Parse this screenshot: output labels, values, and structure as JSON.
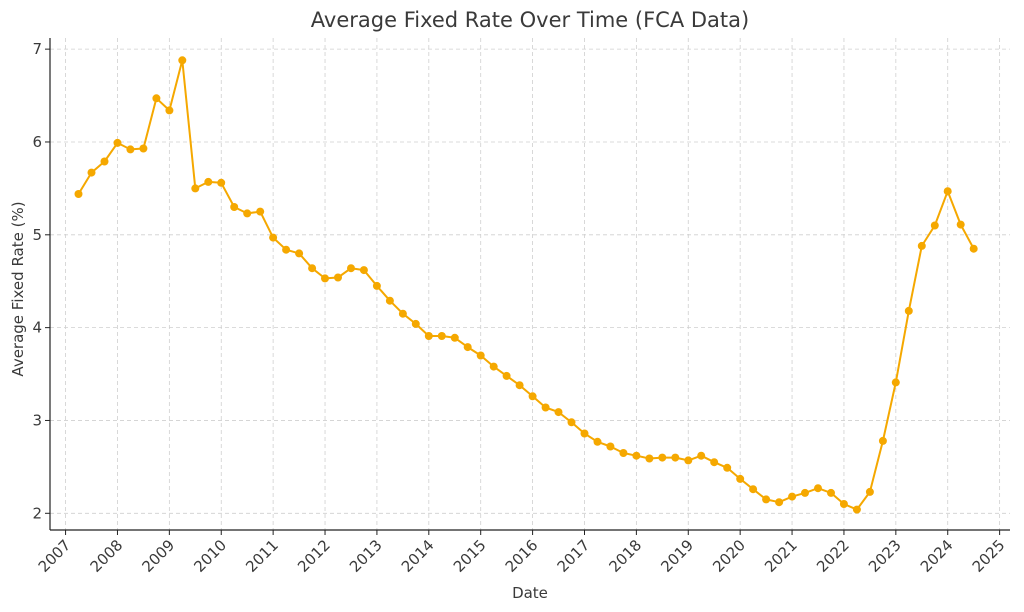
{
  "chart_data": {
    "type": "line",
    "title": "Average Fixed Rate Over Time (FCA Data)",
    "xlabel": "Date",
    "ylabel": "Average Fixed Rate (%)",
    "xlim": [
      2006.7,
      2025.2
    ],
    "ylim": [
      1.82,
      7.12
    ],
    "x_ticks": [
      "2007",
      "2008",
      "2009",
      "2010",
      "2011",
      "2012",
      "2013",
      "2014",
      "2015",
      "2016",
      "2017",
      "2018",
      "2019",
      "2020",
      "2021",
      "2022",
      "2023",
      "2024",
      "2025"
    ],
    "y_ticks": [
      "2",
      "3",
      "4",
      "5",
      "6",
      "7"
    ],
    "grid": true,
    "legend": false,
    "color": "#F5A800",
    "series": [
      {
        "x": [
          "2007-04",
          "2007-07",
          "2007-10",
          "2008-01",
          "2008-04",
          "2008-07",
          "2008-10",
          "2009-01",
          "2009-04",
          "2009-07",
          "2009-10",
          "2010-01",
          "2010-04",
          "2010-07",
          "2010-10",
          "2011-01",
          "2011-04",
          "2011-07",
          "2011-10",
          "2012-01",
          "2012-04",
          "2012-07",
          "2012-10",
          "2013-01",
          "2013-04",
          "2013-07",
          "2013-10",
          "2014-01",
          "2014-04",
          "2014-07",
          "2014-10",
          "2015-01",
          "2015-04",
          "2015-07",
          "2015-10",
          "2016-01",
          "2016-04",
          "2016-07",
          "2016-10",
          "2017-01",
          "2017-04",
          "2017-07",
          "2017-10",
          "2018-01",
          "2018-04",
          "2018-07",
          "2018-10",
          "2019-01",
          "2019-04",
          "2019-07",
          "2019-10",
          "2020-01",
          "2020-04",
          "2020-07",
          "2020-10",
          "2021-01",
          "2021-04",
          "2021-07",
          "2021-10",
          "2022-01",
          "2022-04",
          "2022-07",
          "2022-10",
          "2023-01",
          "2023-04",
          "2023-07",
          "2023-10",
          "2024-01",
          "2024-04",
          "2024-07"
        ],
        "values": [
          5.44,
          5.67,
          5.79,
          5.99,
          5.92,
          5.93,
          6.47,
          6.34,
          6.88,
          5.5,
          5.57,
          5.56,
          5.3,
          5.23,
          5.25,
          4.97,
          4.84,
          4.8,
          4.64,
          4.53,
          4.54,
          4.64,
          4.62,
          4.45,
          4.29,
          4.15,
          4.04,
          3.91,
          3.91,
          3.89,
          3.79,
          3.7,
          3.58,
          3.48,
          3.38,
          3.26,
          3.14,
          3.09,
          2.98,
          2.86,
          2.77,
          2.72,
          2.65,
          2.62,
          2.59,
          2.6,
          2.6,
          2.57,
          2.62,
          2.55,
          2.49,
          2.37,
          2.26,
          2.15,
          2.12,
          2.18,
          2.22,
          2.27,
          2.22,
          2.1,
          2.04,
          2.23,
          2.78,
          3.41,
          4.18,
          4.88,
          5.1,
          5.47,
          5.11,
          4.85
        ]
      }
    ]
  }
}
